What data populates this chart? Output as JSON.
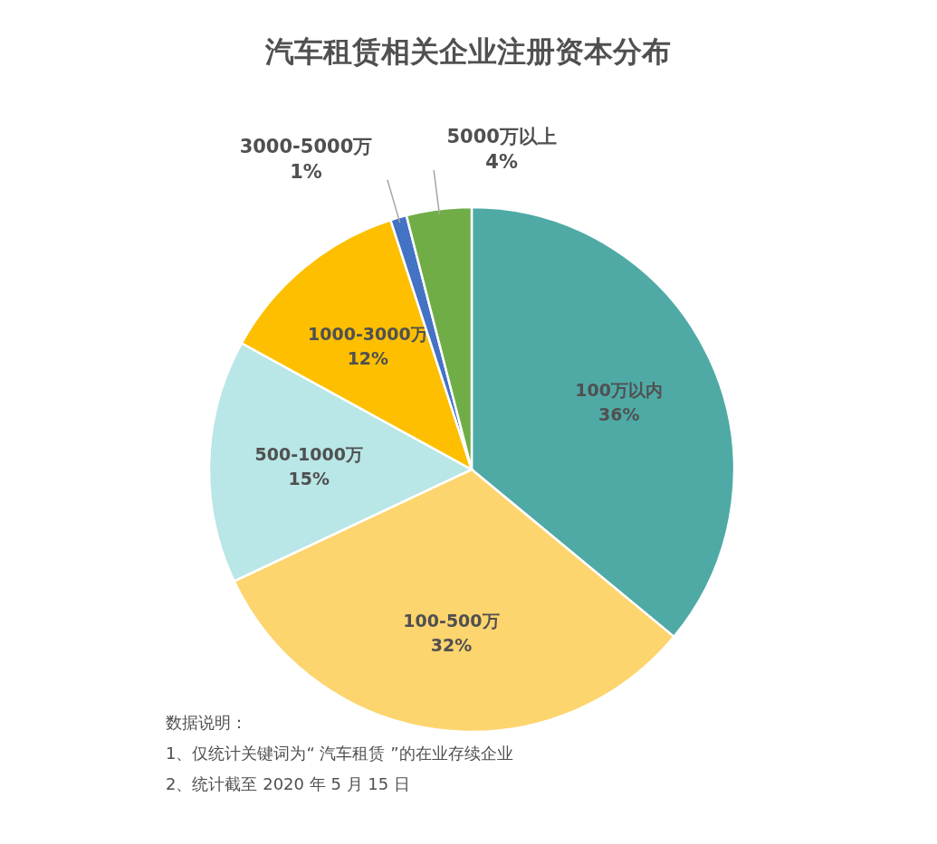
{
  "chart_data": {
    "type": "pie",
    "title": "汽车租赁相关企业注册资本分布",
    "categories": [
      "100万以内",
      "100-500万",
      "500-1000万",
      "1000-3000万",
      "3000-5000万",
      "5000万以上"
    ],
    "values": [
      36,
      32,
      15,
      12,
      1,
      4
    ],
    "colors": [
      "#4faaa6",
      "#fdd56e",
      "#b9e6e6",
      "#fdbf00",
      "#4472c4",
      "#70ad47"
    ],
    "value_labels": [
      "36%",
      "32%",
      "15%",
      "12%",
      "1%",
      "4%"
    ],
    "annotations": [
      "数据说明：",
      "1、仅统计关键词为“ 汽车租赁 ”的在业存续企业",
      "2、统计截至 2020 年 5 月 15 日"
    ]
  }
}
